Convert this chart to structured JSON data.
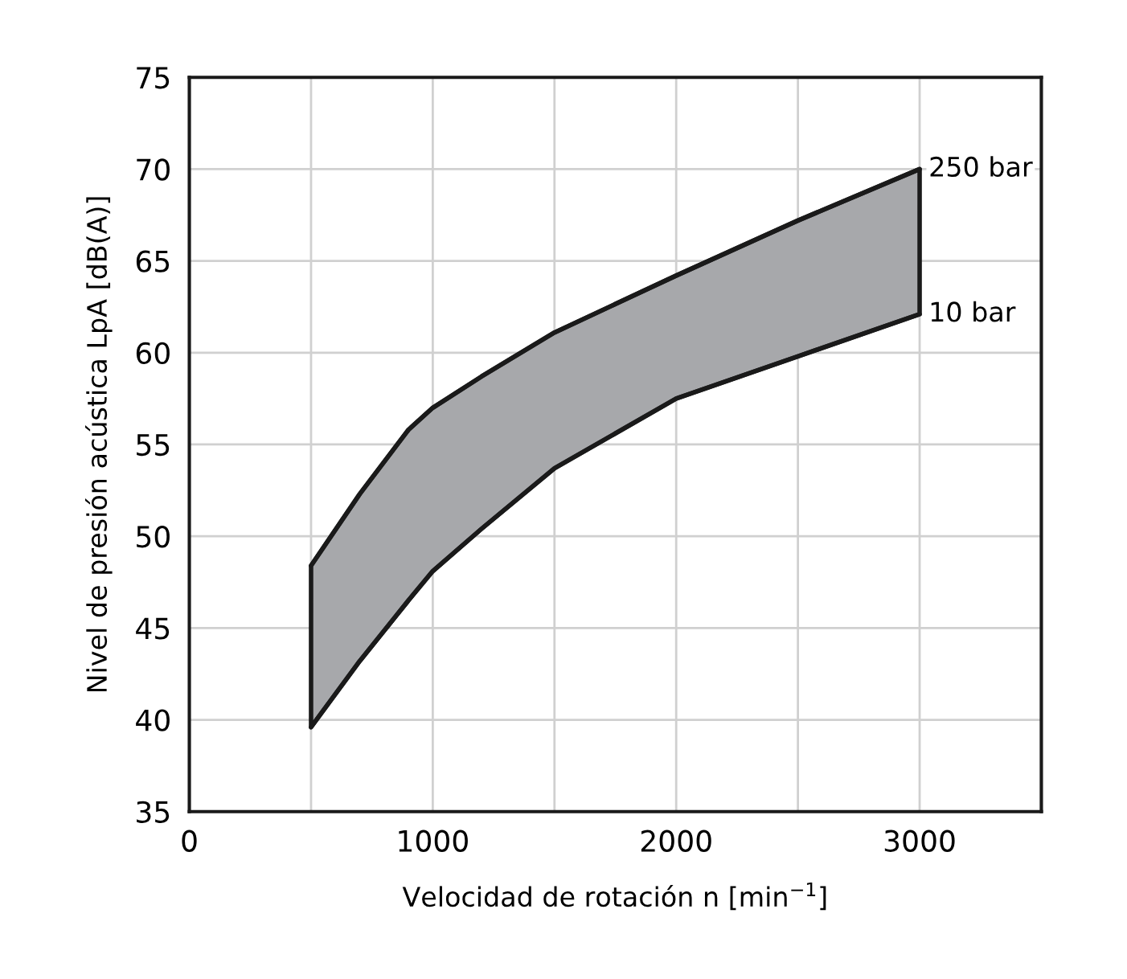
{
  "chart_data": {
    "type": "line",
    "xlabel": "Velocidad de rotación n [min$^{−1}$]",
    "ylabel": "Nivel de presión acústica LpA [dB(A)]",
    "x": [
      500,
      700,
      900,
      1000,
      1200,
      1500,
      2000,
      2500,
      3000
    ],
    "series": [
      {
        "name": "250 bar",
        "type": "area",
        "color": "#a7a8ab",
        "values": [
          48.4,
          52.3,
          55.8,
          57.0,
          58.7,
          61.1,
          64.2,
          67.2,
          70.0
        ]
      },
      {
        "name": "10 bar",
        "color": "#1a1a1a",
        "values": [
          39.6,
          43.2,
          46.5,
          48.1,
          50.4,
          53.7,
          57.5,
          59.8,
          62.1
        ]
      }
    ],
    "xlim": [
      0,
      3500
    ],
    "xticks": [
      0,
      {
        "value": 500,
        "label": null
      },
      1000,
      {
        "value": 1500,
        "label": null
      },
      2000,
      {
        "value": 2500,
        "label": null
      },
      3000,
      {
        "value": 3500,
        "label": null
      }
    ],
    "ylim": [
      35,
      75
    ],
    "yticks": [
      35,
      40,
      45,
      50,
      55,
      60,
      65,
      70,
      75
    ],
    "grid": true,
    "line_style": "solid",
    "marker": "none"
  }
}
